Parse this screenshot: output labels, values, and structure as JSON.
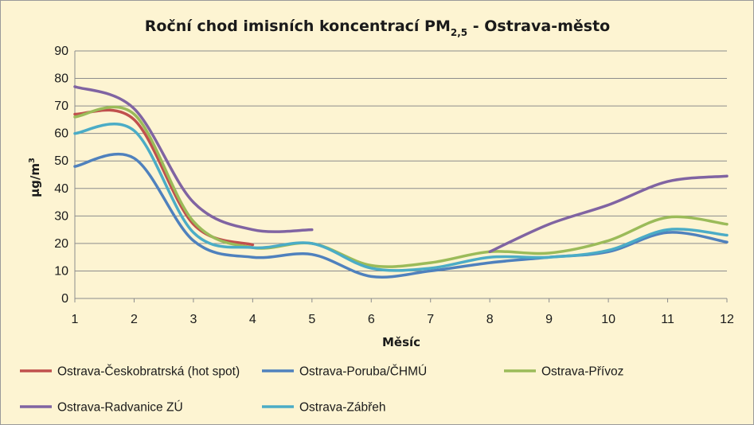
{
  "chart_data": {
    "type": "line",
    "title": "Roční chod imisních koncentrací PM",
    "title_subscript": "2,5",
    "title_suffix": " - Ostrava-město",
    "xlabel": "Měsíc",
    "ylabel": "µg/m",
    "ylabel_superscript": "3",
    "x": [
      1,
      2,
      3,
      4,
      5,
      6,
      7,
      8,
      9,
      10,
      11,
      12
    ],
    "xlim": [
      1,
      12
    ],
    "ylim": [
      0,
      90
    ],
    "yticks": [
      0,
      10,
      20,
      30,
      40,
      50,
      60,
      70,
      80,
      90
    ],
    "grid": true,
    "legend_position": "bottom",
    "series": [
      {
        "name": "Ostrava-Českobratrská (hot spot)",
        "color": "#c0504d",
        "values": [
          67,
          65,
          27,
          19.5,
          null,
          null,
          null,
          null,
          null,
          null,
          null,
          null
        ]
      },
      {
        "name": "Ostrava-Poruba/ČHMÚ",
        "color": "#4f81bd",
        "values": [
          48,
          51,
          21,
          15,
          16,
          8,
          10,
          13,
          15,
          17,
          24,
          20.5
        ]
      },
      {
        "name": "Ostrava-Přívoz",
        "color": "#9bbb59",
        "values": [
          66,
          67,
          28,
          18.5,
          20,
          12,
          13,
          17,
          16.5,
          21,
          29.5,
          27
        ]
      },
      {
        "name": "Ostrava-Radvanice ZÚ",
        "color": "#8064a2",
        "values": [
          77,
          69,
          35,
          25,
          25,
          null,
          null,
          17,
          27,
          34,
          42.5,
          44.5
        ]
      },
      {
        "name": "Ostrava-Zábřeh",
        "color": "#4bacc6",
        "values": [
          60,
          61,
          24,
          18.5,
          20,
          11,
          11,
          15,
          15,
          17.5,
          25,
          23
        ]
      }
    ]
  }
}
